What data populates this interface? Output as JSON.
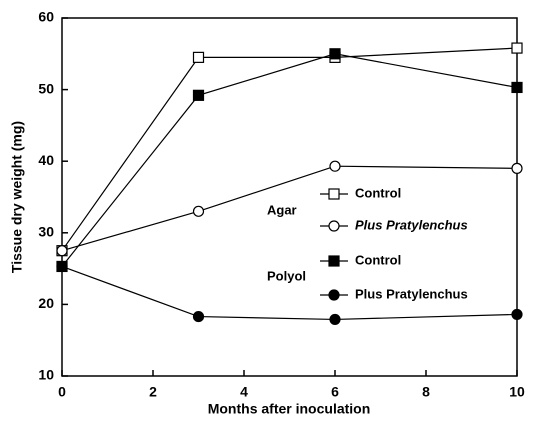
{
  "chart_data": {
    "type": "line",
    "xlabel": "Months after inoculation",
    "ylabel": "Tissue dry weight (mg)",
    "x": [
      0,
      3,
      6,
      10
    ],
    "xlim": [
      0,
      10
    ],
    "xticks": [
      0,
      2,
      4,
      6,
      8,
      10
    ],
    "ylim": [
      10,
      60
    ],
    "yticks": [
      10,
      20,
      30,
      40,
      50,
      60
    ],
    "legend_groups": [
      "Agar",
      "Polyol"
    ],
    "series": [
      {
        "name": "Control",
        "color": "#000000",
        "marker": "square",
        "filled": false,
        "group": 0,
        "values": [
          27.5,
          54.5,
          54.5,
          55.8
        ]
      },
      {
        "name": "Plus Pratylenchus",
        "color": "#000000",
        "marker": "circle",
        "filled": false,
        "group": 0,
        "italic": true,
        "values": [
          27.5,
          33,
          39.3,
          39
        ]
      },
      {
        "name": "Control",
        "color": "#000000",
        "marker": "square",
        "filled": true,
        "group": 1,
        "values": [
          25.3,
          49.2,
          55,
          50.3
        ]
      },
      {
        "name": "Plus Pratylenchus",
        "color": "#000000",
        "marker": "circle",
        "filled": true,
        "group": 1,
        "values": [
          25.3,
          18.3,
          17.9,
          18.6
        ]
      }
    ]
  }
}
